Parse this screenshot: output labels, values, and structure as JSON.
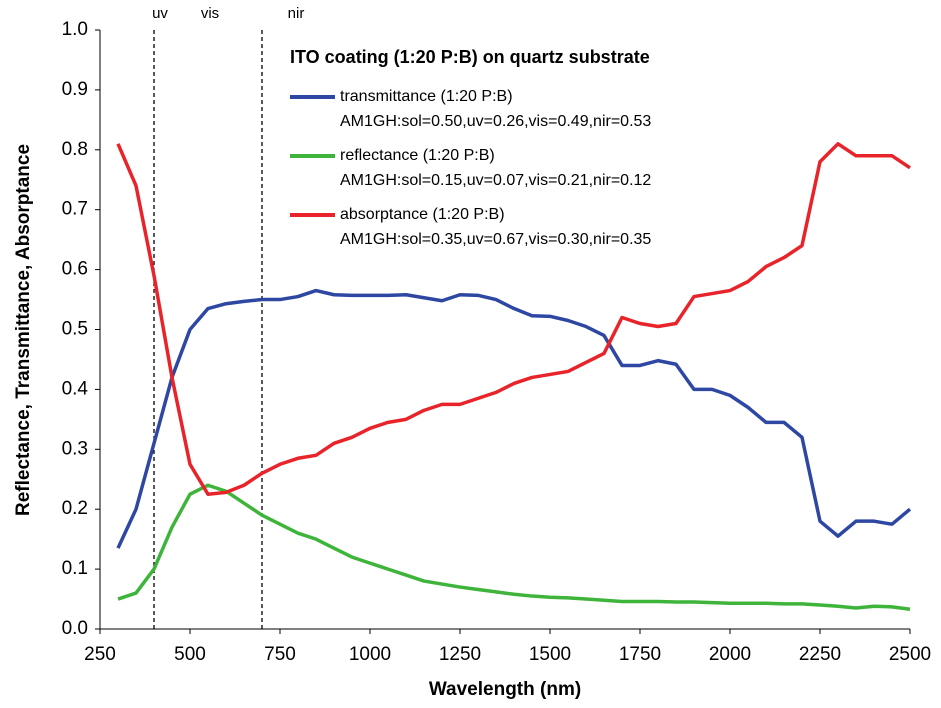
{
  "chart_data": {
    "type": "line",
    "legend_title": "ITO coating (1:20 P:B) on quartz substrate",
    "x_label": "Wavelength (nm)",
    "y_label": "Reflectance, Transmittance, Absorptance",
    "region_labels": [
      "uv",
      "vis",
      "nir"
    ],
    "vlines": [
      400,
      700
    ],
    "x": [
      300,
      350,
      400,
      450,
      500,
      550,
      600,
      650,
      700,
      750,
      800,
      850,
      900,
      950,
      1000,
      1050,
      1100,
      1150,
      1200,
      1250,
      1300,
      1350,
      1400,
      1450,
      1500,
      1550,
      1600,
      1650,
      1700,
      1750,
      1800,
      1850,
      1900,
      1950,
      2000,
      2050,
      2100,
      2150,
      2200,
      2250,
      2300,
      2350,
      2400,
      2450,
      2500
    ],
    "series": [
      {
        "name": "transmittance (1:20 P:B)",
        "stats": "AM1GH:sol=0.50,uv=0.26,vis=0.49,nir=0.53",
        "color": "#2e47a3",
        "values": [
          0.135,
          0.2,
          0.31,
          0.42,
          0.5,
          0.535,
          0.543,
          0.547,
          0.55,
          0.55,
          0.555,
          0.565,
          0.558,
          0.557,
          0.557,
          0.557,
          0.558,
          0.553,
          0.548,
          0.558,
          0.557,
          0.55,
          0.535,
          0.523,
          0.522,
          0.515,
          0.505,
          0.49,
          0.44,
          0.44,
          0.448,
          0.442,
          0.4,
          0.4,
          0.39,
          0.37,
          0.345,
          0.345,
          0.32,
          0.18,
          0.155,
          0.18,
          0.18,
          0.175,
          0.2
        ]
      },
      {
        "name": "reflectance (1:20 P:B)",
        "stats": "AM1GH:sol=0.15,uv=0.07,vis=0.21,nir=0.12",
        "color": "#3fb43a",
        "values": [
          0.05,
          0.06,
          0.1,
          0.17,
          0.225,
          0.24,
          0.23,
          0.21,
          0.19,
          0.175,
          0.16,
          0.15,
          0.135,
          0.12,
          0.11,
          0.1,
          0.09,
          0.08,
          0.075,
          0.07,
          0.066,
          0.062,
          0.058,
          0.055,
          0.053,
          0.052,
          0.05,
          0.048,
          0.046,
          0.046,
          0.046,
          0.045,
          0.045,
          0.044,
          0.043,
          0.043,
          0.043,
          0.042,
          0.042,
          0.04,
          0.038,
          0.035,
          0.038,
          0.037,
          0.033
        ]
      },
      {
        "name": "absorptance (1:20 P:B)",
        "stats": "AM1GH:sol=0.35,uv=0.67,vis=0.30,nir=0.35",
        "color": "#e8242a",
        "values": [
          0.81,
          0.74,
          0.59,
          0.42,
          0.275,
          0.225,
          0.228,
          0.24,
          0.26,
          0.275,
          0.285,
          0.29,
          0.31,
          0.32,
          0.335,
          0.345,
          0.35,
          0.365,
          0.375,
          0.375,
          0.385,
          0.395,
          0.41,
          0.42,
          0.425,
          0.43,
          0.445,
          0.46,
          0.52,
          0.51,
          0.505,
          0.51,
          0.555,
          0.56,
          0.565,
          0.58,
          0.605,
          0.62,
          0.64,
          0.78,
          0.81,
          0.79,
          0.79,
          0.79,
          0.77
        ]
      }
    ],
    "xlim": [
      250,
      2500
    ],
    "xticks": [
      250,
      500,
      750,
      1000,
      1250,
      1500,
      1750,
      2000,
      2250,
      2500
    ],
    "ylim": [
      0,
      1
    ],
    "yticks": [
      {
        "value": 0,
        "label": "0.0"
      },
      0.1,
      0.2,
      0.3,
      0.4,
      0.5,
      0.6,
      0.7,
      0.8,
      0.9,
      {
        "value": 1,
        "label": "1.0"
      }
    ]
  }
}
